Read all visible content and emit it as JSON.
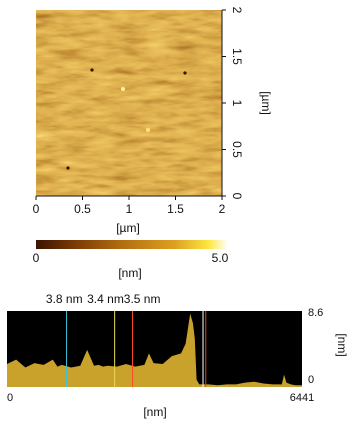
{
  "afm_image": {
    "x_ticks": [
      "0",
      "0.5",
      "1",
      "1.5",
      "2"
    ],
    "y_ticks": [
      "0",
      "0.5",
      "1",
      "1.5",
      "2"
    ],
    "x_unit": "[µm]",
    "y_unit": "[µm]",
    "xlim": [
      0,
      2
    ],
    "ylim": [
      0,
      2
    ]
  },
  "colorbar": {
    "min_label": "0",
    "max_label": "5.0",
    "unit": "[nm]",
    "range": [
      0,
      5.0
    ],
    "colors": [
      "#3a1500",
      "#7a3a05",
      "#b36e10",
      "#dca020",
      "#ffe642",
      "#ffffff"
    ]
  },
  "chart_data": {
    "type": "area",
    "xlim": [
      0,
      6441
    ],
    "ylim": [
      0,
      8.6
    ],
    "x_tick_labels": [
      "0",
      "6441"
    ],
    "y_tick_labels": [
      "0",
      "8.6"
    ],
    "xlabel": "[nm]",
    "ylabel": "[nm]",
    "fill_color": "#c9a22c",
    "background": "#000000",
    "x": [
      0,
      200,
      400,
      600,
      800,
      1000,
      1100,
      1200,
      1400,
      1600,
      1750,
      1900,
      2000,
      2100,
      2200,
      2400,
      2600,
      2800,
      3000,
      3100,
      3200,
      3400,
      3600,
      3800,
      3900,
      4000,
      4060,
      4100,
      4140,
      4200,
      4400,
      4600,
      4800,
      5000,
      5200,
      5400,
      5600,
      5800,
      6000,
      6050,
      6100,
      6200,
      6300,
      6441
    ],
    "y": [
      2.6,
      3.1,
      2.2,
      2.7,
      2.5,
      3.1,
      2.3,
      2.5,
      2.2,
      2.4,
      4.2,
      2.4,
      2.5,
      2.3,
      2.4,
      2.3,
      2.6,
      2.3,
      2.5,
      3.8,
      2.7,
      2.6,
      3.5,
      3.8,
      4.9,
      8.3,
      7.2,
      5.5,
      0.8,
      0.3,
      0.3,
      0.2,
      0.3,
      0.3,
      0.5,
      0.6,
      0.4,
      0.3,
      0.3,
      1.4,
      0.5,
      0.3,
      0.2,
      0.2
    ],
    "markers": [
      {
        "x": 1300,
        "color": "#3cc0d6"
      },
      {
        "x": 2350,
        "color": "#e8d85a"
      },
      {
        "x": 2740,
        "color": "#ff4a2a"
      },
      {
        "x": 4280,
        "color": "#ffffff"
      },
      {
        "x": 4340,
        "color": "#d04a2a"
      }
    ],
    "annotations": [
      {
        "text": "3.8 nm",
        "x": 1250
      },
      {
        "text": "3.4 nm",
        "x": 2150
      },
      {
        "text": "3.5 nm",
        "x": 2950
      }
    ]
  }
}
